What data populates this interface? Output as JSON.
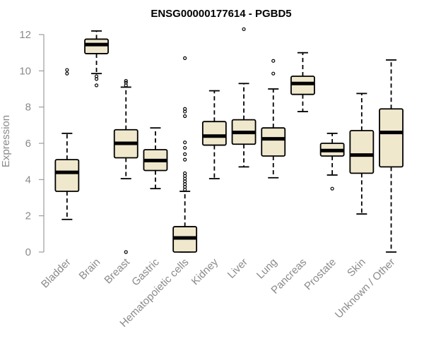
{
  "chart_data": {
    "type": "boxplot",
    "title": "ENSG00000177614 - PGBD5",
    "xlabel": "",
    "ylabel": "Expression",
    "ylim": [
      0,
      12.3
    ],
    "yticks": [
      0,
      2,
      4,
      6,
      8,
      10,
      12
    ],
    "box_fill": "#efe8cd",
    "axis_color": "#8a8a8a",
    "categories": [
      "Bladder",
      "Brain",
      "Breast",
      "Gastric",
      "Hematopoietic cells",
      "Kidney",
      "Liver",
      "Lung",
      "Pancreas",
      "Prostate",
      "Skin",
      "Unknown / Other"
    ],
    "boxes": [
      {
        "name": "Bladder",
        "whisker_low": 1.8,
        "q1": 3.35,
        "median": 4.4,
        "q3": 5.1,
        "whisker_high": 6.55,
        "outliers": [
          9.85,
          10.05
        ]
      },
      {
        "name": "Brain",
        "whisker_low": 9.85,
        "q1": 10.95,
        "median": 11.45,
        "q3": 11.75,
        "whisker_high": 12.2,
        "outliers": [
          9.2,
          9.55,
          9.7
        ]
      },
      {
        "name": "Breast",
        "whisker_low": 4.05,
        "q1": 5.2,
        "median": 6.0,
        "q3": 6.75,
        "whisker_high": 9.1,
        "outliers": [
          0.0,
          9.2,
          9.35,
          9.45
        ]
      },
      {
        "name": "Gastric",
        "whisker_low": 3.5,
        "q1": 4.5,
        "median": 5.05,
        "q3": 5.65,
        "whisker_high": 6.85,
        "outliers": []
      },
      {
        "name": "Hematopoietic cells",
        "whisker_low": 0.0,
        "q1": 0.0,
        "median": 0.78,
        "q3": 1.4,
        "whisker_high": 3.35,
        "outliers": [
          3.45,
          3.6,
          3.75,
          3.9,
          4.05,
          4.2,
          4.35,
          5.1,
          5.4,
          5.75,
          6.05,
          7.5,
          7.75,
          7.9,
          10.7
        ]
      },
      {
        "name": "Kidney",
        "whisker_low": 4.05,
        "q1": 5.9,
        "median": 6.4,
        "q3": 7.2,
        "whisker_high": 8.9,
        "outliers": []
      },
      {
        "name": "Liver",
        "whisker_low": 4.7,
        "q1": 5.95,
        "median": 6.6,
        "q3": 7.3,
        "whisker_high": 9.3,
        "outliers": [
          12.3
        ]
      },
      {
        "name": "Lung",
        "whisker_low": 4.1,
        "q1": 5.3,
        "median": 6.25,
        "q3": 6.85,
        "whisker_high": 9.0,
        "outliers": [
          9.85,
          10.55
        ]
      },
      {
        "name": "Pancreas",
        "whisker_low": 7.75,
        "q1": 8.7,
        "median": 9.3,
        "q3": 9.7,
        "whisker_high": 11.0,
        "outliers": []
      },
      {
        "name": "Prostate",
        "whisker_low": 4.25,
        "q1": 5.3,
        "median": 5.6,
        "q3": 6.0,
        "whisker_high": 6.55,
        "outliers": [
          3.5
        ]
      },
      {
        "name": "Skin",
        "whisker_low": 2.1,
        "q1": 4.35,
        "median": 5.35,
        "q3": 6.7,
        "whisker_high": 8.75,
        "outliers": []
      },
      {
        "name": "Unknown / Other",
        "whisker_low": 0.0,
        "q1": 4.7,
        "median": 6.6,
        "q3": 7.9,
        "whisker_high": 10.6,
        "outliers": []
      }
    ]
  }
}
